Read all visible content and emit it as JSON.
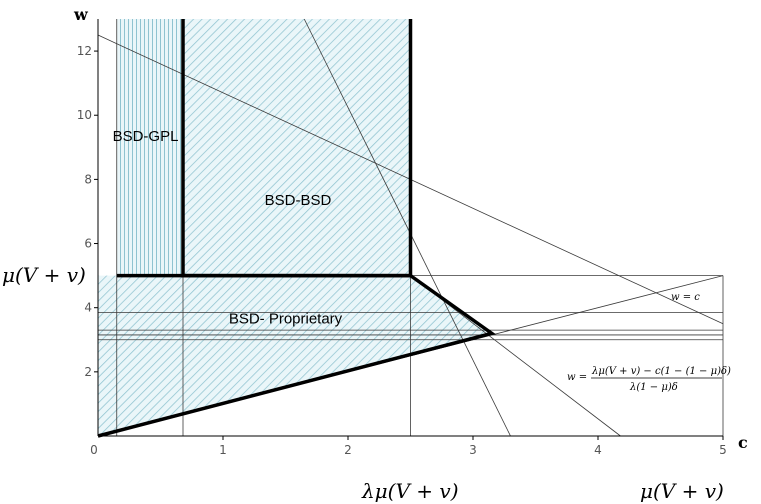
{
  "chart_data": {
    "type": "area",
    "title": "",
    "xlabel": "c",
    "ylabel": "w",
    "xlim": [
      0,
      5
    ],
    "ylim": [
      0,
      13
    ],
    "xticks": [
      {
        "value": 0,
        "label": "0"
      },
      {
        "value": 1,
        "label": "1"
      },
      {
        "value": 2,
        "label": "2"
      },
      {
        "value": 3,
        "label": "3"
      },
      {
        "value": 4,
        "label": "4"
      },
      {
        "value": 5,
        "label": "5"
      }
    ],
    "yticks": [
      {
        "value": 2,
        "label": "2"
      },
      {
        "value": 4,
        "label": "4"
      },
      {
        "value": 6,
        "label": "6"
      },
      {
        "value": 8,
        "label": "8"
      },
      {
        "value": 10,
        "label": "10"
      },
      {
        "value": 12,
        "label": "12"
      }
    ],
    "regions": [
      {
        "label": "BSD-GPL",
        "x": [
          0.15,
          0.68
        ],
        "hatch": "vertical",
        "label_at": [
          0.38,
          9.2
        ]
      },
      {
        "label": "BSD-BSD",
        "x": [
          0.68,
          2.5
        ],
        "hatch": "diagonal",
        "label_at": [
          1.6,
          7.2
        ]
      },
      {
        "label": "BSD- Proprietary",
        "hatch": "diagonal",
        "label_at": [
          1.5,
          3.5
        ]
      }
    ],
    "lines": [
      {
        "name": "w = c",
        "points": [
          [
            0,
            0
          ],
          [
            5,
            5
          ]
        ]
      },
      {
        "points": [
          [
            0,
            12.5
          ],
          [
            5,
            3.5
          ]
        ]
      },
      {
        "points": [
          [
            1.65,
            13
          ],
          [
            3.3,
            0
          ]
        ]
      },
      {
        "points": [
          [
            2.5,
            5
          ],
          [
            4.18,
            0
          ]
        ]
      }
    ],
    "boundaries": [
      {
        "points": [
          [
            0,
            0
          ],
          [
            3.15,
            3.2
          ],
          [
            2.5,
            5
          ],
          [
            0.68,
            5
          ],
          [
            0.68,
            13
          ]
        ]
      },
      {
        "points": [
          [
            2.5,
            5
          ],
          [
            2.5,
            13
          ]
        ]
      }
    ],
    "horizontal_lines": [
      5,
      3.85,
      3.3,
      3.15,
      3.0
    ],
    "vertical_lines": [
      0.15,
      0.68,
      2.5,
      5
    ],
    "annotations": {
      "y_level": "μ(V + v)",
      "x_lambda": "λμ(V + v)",
      "x_mu": "μ(V + v)",
      "w_eq_c": "w = c",
      "formula_lhs": "w =",
      "formula_num": "λμ(V + v) − c(1 − (1 − μ)δ)",
      "formula_den": "λ(1 − μ)δ"
    },
    "colors": {
      "hatch": "#8fc3d0",
      "fill": "#eaf6f9",
      "line": "#3a3a3a",
      "bold": "#000000"
    }
  }
}
